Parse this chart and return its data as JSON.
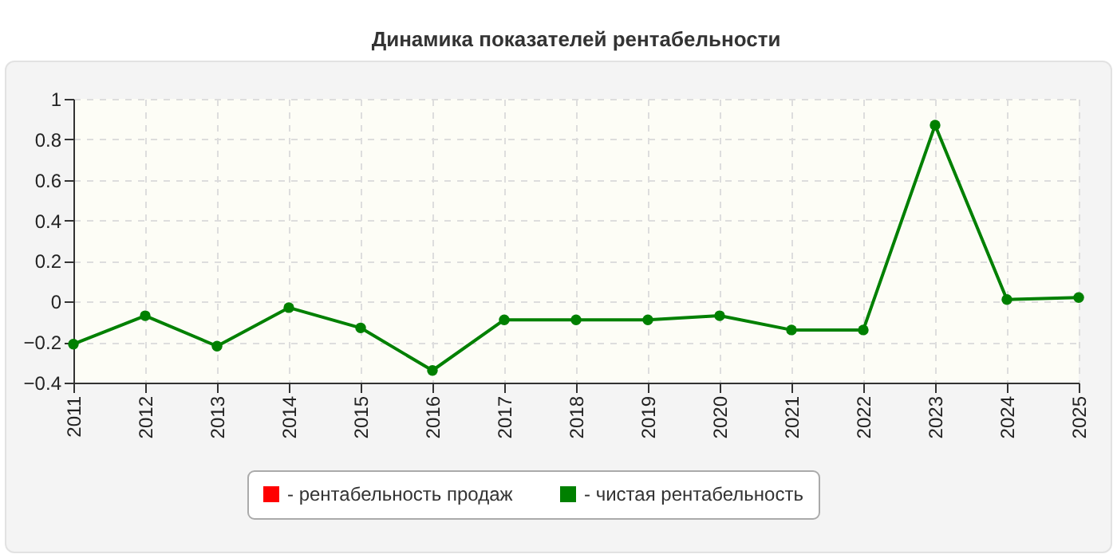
{
  "chart_data": {
    "type": "line",
    "title": "Динамика показателей рентабельности",
    "categories": [
      "2011",
      "2012",
      "2013",
      "2014",
      "2015",
      "2016",
      "2017",
      "2018",
      "2019",
      "2020",
      "2021",
      "2022",
      "2023",
      "2024",
      "2025"
    ],
    "series": [
      {
        "name": "- рентабельность продаж",
        "color": "#ff0000",
        "values": [
          null,
          null,
          null,
          null,
          null,
          null,
          null,
          null,
          null,
          null,
          null,
          null,
          null,
          null,
          null
        ]
      },
      {
        "name": "- чистая рентабельность",
        "color": "#008000",
        "values": [
          -0.21,
          -0.07,
          -0.22,
          -0.03,
          -0.13,
          -0.34,
          -0.09,
          -0.09,
          -0.09,
          -0.07,
          -0.14,
          -0.14,
          0.87,
          0.01,
          0.02
        ]
      }
    ],
    "ylim": [
      -0.4,
      1
    ],
    "yticks": [
      -0.4,
      -0.2,
      0,
      0.2,
      0.4,
      0.6,
      0.8,
      1
    ],
    "grid": true,
    "legend": "bottom",
    "marker": "circle",
    "line_style": "solid"
  }
}
